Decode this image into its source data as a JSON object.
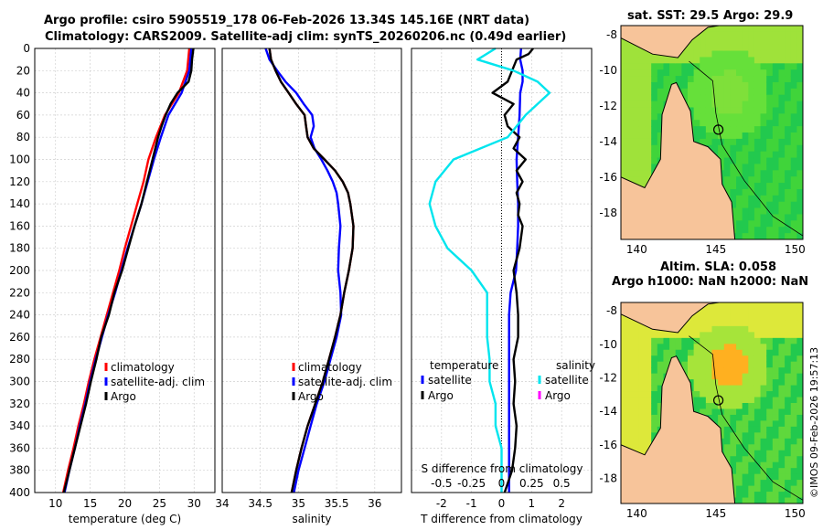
{
  "header": {
    "line1": "Argo profile: csiro 5905519_178 06-Feb-2026 13.34S 145.16E (NRT data)",
    "line2": "Climatology: CARS2009. Satellite-adj clim: synTS_20260206.nc (0.49d earlier)"
  },
  "credit": "©IMOS 09-Feb-2026 19:57:13",
  "colors": {
    "clim": "#ff0000",
    "sat": "#0000ff",
    "argo": "#000000",
    "sat_s": "#00e5ee",
    "argo_s": "#ff00ff",
    "land": "#f7c49a",
    "grid": "#d0d0d0"
  },
  "depth_ticks": [
    "0",
    "20",
    "40",
    "60",
    "80",
    "100",
    "120",
    "140",
    "160",
    "180",
    "200",
    "220",
    "240",
    "260",
    "280",
    "300",
    "320",
    "340",
    "360",
    "380",
    "400"
  ],
  "chart_data": [
    {
      "type": "line",
      "name": "temperature",
      "xlabel": "temperature (deg C)",
      "xlim": [
        7,
        33
      ],
      "ylim": [
        0,
        400
      ],
      "xticks": [
        "10",
        "15",
        "20",
        "25",
        "30"
      ],
      "legend": [
        "climatology",
        "satellite-adj. clim",
        "Argo"
      ],
      "series": [
        {
          "name": "climatology",
          "color": "clim",
          "depth": [
            0,
            20,
            40,
            60,
            80,
            100,
            120,
            140,
            160,
            180,
            200,
            220,
            240,
            260,
            280,
            300,
            320,
            340,
            360,
            380,
            400
          ],
          "values": [
            29.3,
            29.0,
            27.8,
            25.8,
            24.5,
            23.4,
            22.7,
            21.8,
            20.9,
            20.0,
            19.2,
            18.3,
            17.4,
            16.5,
            15.6,
            14.8,
            14.1,
            13.3,
            12.6,
            11.8,
            11.1
          ]
        },
        {
          "name": "satellite-adj. clim",
          "color": "sat",
          "depth": [
            0,
            20,
            40,
            60,
            80,
            100,
            120,
            140,
            160,
            180,
            200,
            220,
            240,
            260,
            280,
            300,
            320,
            340,
            360,
            380,
            400
          ],
          "values": [
            29.6,
            29.3,
            28.2,
            26.3,
            25.2,
            24.2,
            23.3,
            22.4,
            21.4,
            20.4,
            19.5,
            18.6,
            17.6,
            16.7,
            15.8,
            15.0,
            14.3,
            13.5,
            12.8,
            12.0,
            11.3
          ]
        },
        {
          "name": "Argo",
          "color": "argo",
          "depth": [
            0,
            10,
            20,
            30,
            40,
            50,
            60,
            70,
            80,
            90,
            100,
            110,
            120,
            130,
            140,
            160,
            180,
            200,
            220,
            240,
            260,
            280,
            300,
            320,
            340,
            360,
            380,
            400
          ],
          "values": [
            29.9,
            29.7,
            29.6,
            29.2,
            27.6,
            26.6,
            25.9,
            25.3,
            24.8,
            24.4,
            24.0,
            23.6,
            23.2,
            22.8,
            22.4,
            21.4,
            20.5,
            19.6,
            18.5,
            17.7,
            16.6,
            15.9,
            15.1,
            14.4,
            13.6,
            12.8,
            12.0,
            11.2
          ]
        }
      ]
    },
    {
      "type": "line",
      "name": "salinity",
      "xlabel": "salinity",
      "xlim": [
        34,
        36.35
      ],
      "ylim": [
        0,
        400
      ],
      "xticks": [
        "34",
        "34.5",
        "35",
        "35.5",
        "36"
      ],
      "legend": [
        "climatology",
        "satellite-adj. clim",
        "Argo"
      ],
      "series": [
        {
          "name": "climatology",
          "color": "clim",
          "depth": [
            0,
            10,
            20,
            30,
            40,
            50,
            60,
            70,
            80,
            90,
            100,
            110,
            120,
            130,
            140,
            160,
            180,
            200,
            220,
            240,
            260,
            280,
            300,
            320,
            340,
            360,
            380,
            400
          ],
          "values": [
            34.62,
            34.64,
            34.7,
            34.77,
            34.87,
            34.97,
            35.08,
            35.1,
            35.12,
            35.2,
            35.34,
            35.48,
            35.58,
            35.65,
            35.68,
            35.72,
            35.71,
            35.66,
            35.6,
            35.55,
            35.48,
            35.4,
            35.32,
            35.22,
            35.12,
            35.04,
            34.97,
            34.91
          ]
        },
        {
          "name": "satellite-adj. clim",
          "color": "sat",
          "depth": [
            0,
            10,
            20,
            30,
            40,
            50,
            60,
            70,
            80,
            90,
            100,
            110,
            120,
            130,
            140,
            160,
            180,
            200,
            220,
            240,
            260,
            280,
            300,
            320,
            340,
            360,
            380,
            400
          ],
          "values": [
            34.57,
            34.62,
            34.72,
            34.83,
            34.97,
            35.07,
            35.18,
            35.2,
            35.16,
            35.21,
            35.3,
            35.38,
            35.45,
            35.5,
            35.52,
            35.55,
            35.53,
            35.52,
            35.55,
            35.56,
            35.5,
            35.42,
            35.34,
            35.24,
            35.16,
            35.08,
            35.0,
            34.94
          ]
        },
        {
          "name": "Argo",
          "color": "argo",
          "depth": [
            0,
            10,
            20,
            30,
            40,
            50,
            60,
            70,
            80,
            90,
            100,
            110,
            120,
            130,
            140,
            160,
            180,
            200,
            220,
            240,
            260,
            280,
            300,
            320,
            340,
            360,
            380,
            400
          ],
          "values": [
            34.62,
            34.64,
            34.7,
            34.77,
            34.87,
            34.97,
            35.08,
            35.1,
            35.12,
            35.2,
            35.34,
            35.48,
            35.58,
            35.65,
            35.68,
            35.72,
            35.71,
            35.66,
            35.6,
            35.55,
            35.48,
            35.4,
            35.32,
            35.22,
            35.12,
            35.04,
            34.97,
            34.91
          ]
        }
      ]
    },
    {
      "type": "line",
      "name": "difference",
      "xlabel": "T difference from climatology",
      "xlabel_top": "S difference from climatology",
      "xlim": [
        -3,
        3
      ],
      "ylim": [
        0,
        400
      ],
      "xticks": [
        "-2",
        "-1",
        "0",
        "1",
        "2"
      ],
      "xticks_s": [
        "-0.5",
        "-0.25",
        "0",
        "0.25",
        "0.5"
      ],
      "legend_titles": [
        "temperature",
        "salinity"
      ],
      "legend": [
        "satellite",
        "Argo",
        "satellite",
        "Argo"
      ],
      "series": [
        {
          "name": "T satellite",
          "color": "sat",
          "depth": [
            0,
            10,
            20,
            30,
            40,
            60,
            80,
            100,
            120,
            140,
            160,
            180,
            200,
            220,
            240,
            260,
            280,
            300,
            320,
            340,
            360,
            380,
            400
          ],
          "values": [
            0.65,
            0.62,
            0.7,
            0.7,
            0.62,
            0.6,
            0.55,
            0.5,
            0.52,
            0.55,
            0.55,
            0.52,
            0.48,
            0.3,
            0.25,
            0.25,
            0.25,
            0.25,
            0.25,
            0.25,
            0.25,
            0.25,
            0.25
          ]
        },
        {
          "name": "T Argo",
          "color": "argo",
          "depth": [
            0,
            5,
            10,
            20,
            30,
            40,
            50,
            60,
            70,
            80,
            90,
            100,
            110,
            120,
            130,
            140,
            150,
            160,
            180,
            200,
            220,
            240,
            260,
            280,
            300,
            320,
            340,
            360,
            380,
            400
          ],
          "values": [
            1.05,
            0.9,
            0.5,
            0.35,
            0.2,
            -0.3,
            0.4,
            0.1,
            0.2,
            0.6,
            0.4,
            0.8,
            0.5,
            0.7,
            0.5,
            0.6,
            0.55,
            0.7,
            0.6,
            0.4,
            0.5,
            0.55,
            0.55,
            0.4,
            0.45,
            0.4,
            0.5,
            0.45,
            0.35,
            0.1
          ]
        },
        {
          "name": "S satellite",
          "color": "sat_s",
          "depth": [
            0,
            10,
            20,
            30,
            40,
            60,
            80,
            100,
            120,
            140,
            160,
            180,
            200,
            220,
            240,
            260,
            280,
            300,
            320,
            340,
            360,
            380,
            400
          ],
          "values": [
            -0.05,
            -0.2,
            0.1,
            0.3,
            0.4,
            0.2,
            0.05,
            -0.4,
            -0.55,
            -0.6,
            -0.55,
            -0.45,
            -0.25,
            -0.12,
            -0.12,
            -0.12,
            -0.1,
            -0.1,
            -0.05,
            -0.05,
            0.0,
            0.0,
            0.0
          ]
        },
        {
          "name": "S Argo",
          "color": "argo_s",
          "depth": [],
          "values": []
        }
      ]
    }
  ],
  "maps": [
    {
      "title1": "sat. SST: 29.5 Argo: 29.9",
      "title2": "",
      "xticks": [
        "140",
        "145",
        "150"
      ],
      "yticks": [
        "-8",
        "-10",
        "-12",
        "-14",
        "-16",
        "-18"
      ],
      "lon": [
        139,
        150.5
      ],
      "lat": [
        -19.5,
        -7.5
      ],
      "marker": {
        "lon": 145.16,
        "lat": -13.34
      },
      "palette": [
        "#22c94e",
        "#40d43a",
        "#66e03a",
        "#9fe23a"
      ],
      "hotspot": {
        "lon": 145.8,
        "lat": -11.3,
        "color": "#7fe03a"
      }
    },
    {
      "title1": "Altim. SLA: 0.058",
      "title2": "Argo h1000: NaN h2000: NaN",
      "xticks": [
        "140",
        "145",
        "150"
      ],
      "yticks": [
        "-8",
        "-10",
        "-12",
        "-14",
        "-16",
        "-18"
      ],
      "lon": [
        139,
        150.5
      ],
      "lat": [
        -19.5,
        -7.5
      ],
      "marker": {
        "lon": 145.16,
        "lat": -13.34
      },
      "palette": [
        "#22c94e",
        "#5fd83c",
        "#a6e43a",
        "#dde83a"
      ],
      "hotspot": {
        "lon": 145.8,
        "lat": -11.3,
        "color": "#ffb020"
      }
    }
  ]
}
